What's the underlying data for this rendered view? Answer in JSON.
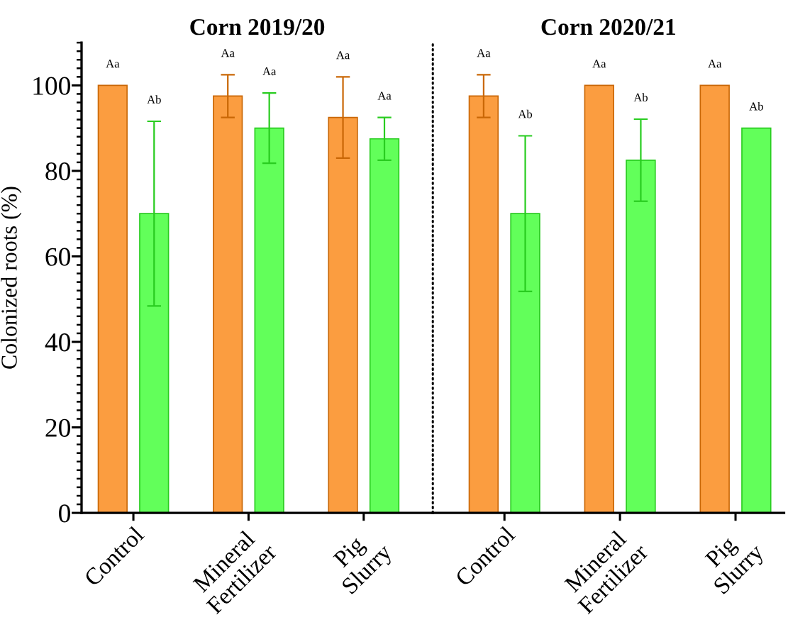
{
  "chart_data": [
    {
      "type": "bar",
      "title": "Corn 2019/20",
      "ylabel": "Colonized roots (%)",
      "categories": [
        "Control",
        "Mineral\nFertilizer",
        "Pig\nSlurry"
      ],
      "series": [
        {
          "color": "#fb9d40",
          "values": [
            100,
            97.5,
            92.5
          ],
          "errors": [
            null,
            5,
            9.5
          ]
        },
        {
          "color": "#62ff5a",
          "values": [
            70,
            90,
            87.5
          ],
          "errors": [
            21.6,
            8.2,
            5
          ]
        }
      ],
      "annotations": [
        "Aa",
        "Ab",
        "Aa",
        "Aa",
        "Aa",
        "Aa"
      ],
      "ylim": [
        0,
        110
      ],
      "yticks": [
        0,
        {
          "value": 2,
          "label": null
        },
        {
          "value": 4,
          "label": null
        },
        {
          "value": 6,
          "label": null
        },
        {
          "value": 8,
          "label": null
        },
        {
          "value": 10,
          "label": null
        },
        {
          "value": 12,
          "label": null
        },
        {
          "value": 14,
          "label": null
        },
        {
          "value": 16,
          "label": null
        },
        {
          "value": 18,
          "label": null
        },
        20,
        {
          "value": 22,
          "label": null
        },
        {
          "value": 24,
          "label": null
        },
        {
          "value": 26,
          "label": null
        },
        {
          "value": 28,
          "label": null
        },
        {
          "value": 30,
          "label": null
        },
        {
          "value": 32,
          "label": null
        },
        {
          "value": 34,
          "label": null
        },
        {
          "value": 36,
          "label": null
        },
        {
          "value": 38,
          "label": null
        },
        40,
        {
          "value": 42,
          "label": null
        },
        {
          "value": 44,
          "label": null
        },
        {
          "value": 46,
          "label": null
        },
        {
          "value": 48,
          "label": null
        },
        {
          "value": 50,
          "label": null
        },
        {
          "value": 52,
          "label": null
        },
        {
          "value": 54,
          "label": null
        },
        {
          "value": 56,
          "label": null
        },
        {
          "value": 58,
          "label": null
        },
        60,
        {
          "value": 62,
          "label": null
        },
        {
          "value": 64,
          "label": null
        },
        {
          "value": 66,
          "label": null
        },
        {
          "value": 68,
          "label": null
        },
        {
          "value": 70,
          "label": null
        },
        {
          "value": 72,
          "label": null
        },
        {
          "value": 74,
          "label": null
        },
        {
          "value": 76,
          "label": null
        },
        {
          "value": 78,
          "label": null
        },
        80,
        {
          "value": 82,
          "label": null
        },
        {
          "value": 84,
          "label": null
        },
        {
          "value": 86,
          "label": null
        },
        {
          "value": 88,
          "label": null
        },
        {
          "value": 90,
          "label": null
        },
        {
          "value": 92,
          "label": null
        },
        {
          "value": 94,
          "label": null
        },
        {
          "value": 96,
          "label": null
        },
        {
          "value": 98,
          "label": null
        },
        100,
        {
          "value": 102,
          "label": null
        },
        {
          "value": 104,
          "label": null
        },
        {
          "value": 106,
          "label": null
        },
        {
          "value": 108,
          "label": null
        },
        {
          "value": 110,
          "label": null
        }
      ]
    },
    {
      "type": "bar",
      "title": "Corn 2020/21",
      "categories": [
        "Control",
        "Mineral\nFertilizer",
        "Pig\nSlurry"
      ],
      "series": [
        {
          "color": "#fb9d40",
          "values": [
            97.5,
            100,
            100
          ],
          "errors": [
            5,
            null,
            null
          ]
        },
        {
          "color": "#62ff5a",
          "values": [
            70,
            82.5,
            90
          ],
          "errors": [
            18.2,
            9.6,
            null
          ]
        }
      ],
      "annotations": [
        "Aa",
        "Ab",
        "Aa",
        "Ab",
        "Aa",
        "Ab"
      ],
      "ylim": [
        0,
        110
      ],
      "tick_labels": "x"
    }
  ]
}
